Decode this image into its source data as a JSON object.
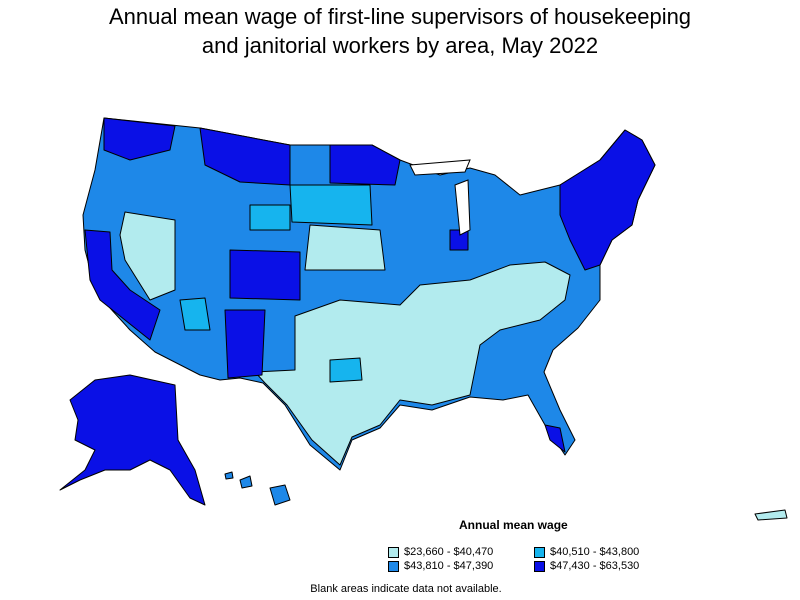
{
  "title_line1": "Annual mean wage of first-line supervisors of housekeeping",
  "title_line2": "and janitorial workers by area, May 2022",
  "legend": {
    "title": "Annual mean wage",
    "items": [
      {
        "label": "$23,660 - $40,470",
        "color": "#b2ebee"
      },
      {
        "label": "$40,510 - $43,800",
        "color": "#16b4ee"
      },
      {
        "label": "$43,810 - $47,390",
        "color": "#1e88e8"
      },
      {
        "label": "$47,430 - $63,530",
        "color": "#0a10e6"
      }
    ]
  },
  "note": "Blank areas indicate data not available."
}
